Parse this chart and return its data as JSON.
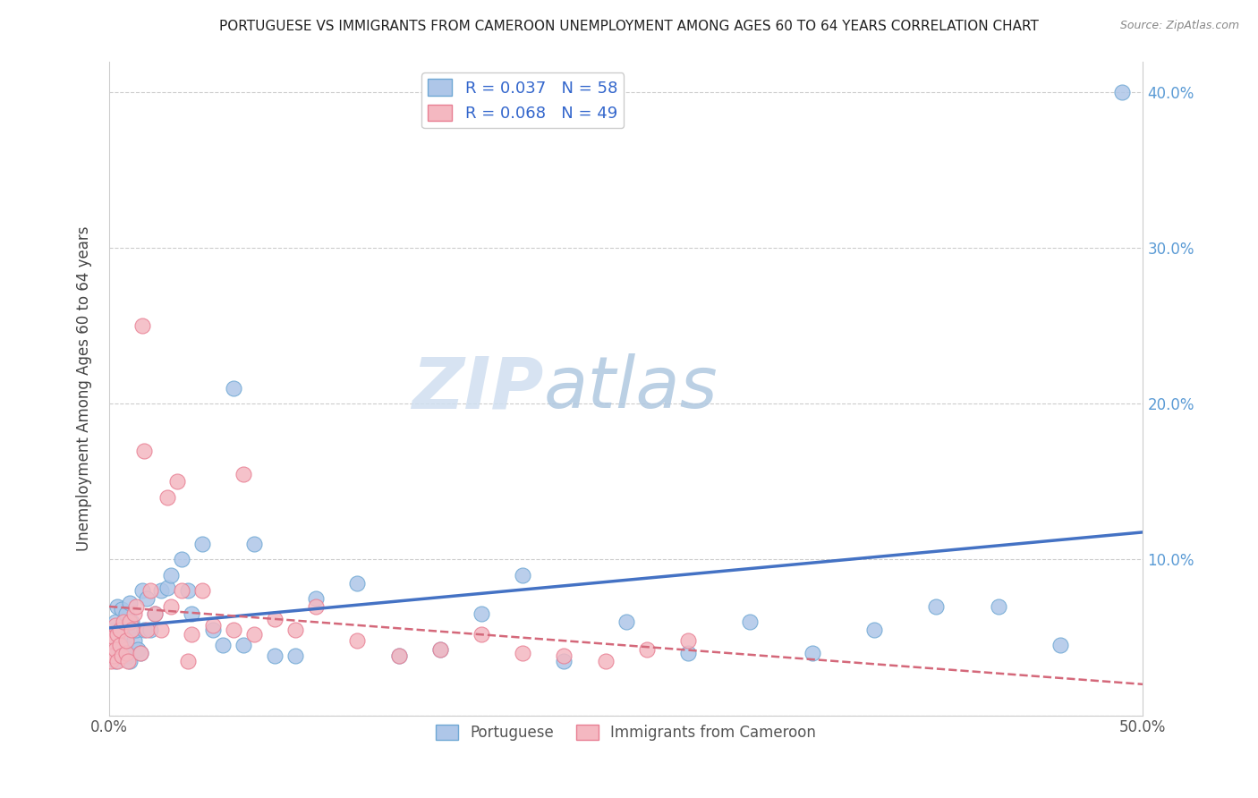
{
  "title": "PORTUGUESE VS IMMIGRANTS FROM CAMEROON UNEMPLOYMENT AMONG AGES 60 TO 64 YEARS CORRELATION CHART",
  "source": "Source: ZipAtlas.com",
  "ylabel": "Unemployment Among Ages 60 to 64 years",
  "xlabel": "",
  "xlim": [
    0.0,
    0.5
  ],
  "ylim": [
    0.0,
    0.42
  ],
  "xticks": [
    0.0,
    0.1,
    0.2,
    0.3,
    0.4,
    0.5
  ],
  "yticks": [
    0.0,
    0.1,
    0.2,
    0.3,
    0.4
  ],
  "xtick_labels": [
    "0.0%",
    "",
    "",
    "",
    "",
    "50.0%"
  ],
  "ytick_labels_right": [
    "",
    "10.0%",
    "20.0%",
    "30.0%",
    "40.0%"
  ],
  "portuguese_color": "#aec6e8",
  "cameroon_color": "#f4b8c1",
  "portuguese_edge": "#6fa8d4",
  "cameroon_edge": "#e87f93",
  "trend_portuguese_color": "#4472C4",
  "trend_cameroon_color": "#d4687a",
  "R_portuguese": 0.037,
  "N_portuguese": 58,
  "R_cameroon": 0.068,
  "N_cameroon": 49,
  "legend_labels": [
    "Portuguese",
    "Immigrants from Cameroon"
  ],
  "watermark_zip": "ZIP",
  "watermark_atlas": "atlas",
  "portuguese_x": [
    0.001,
    0.002,
    0.003,
    0.003,
    0.004,
    0.004,
    0.005,
    0.005,
    0.006,
    0.006,
    0.007,
    0.007,
    0.008,
    0.008,
    0.009,
    0.009,
    0.01,
    0.01,
    0.011,
    0.012,
    0.013,
    0.014,
    0.015,
    0.016,
    0.017,
    0.018,
    0.02,
    0.022,
    0.025,
    0.028,
    0.03,
    0.035,
    0.038,
    0.04,
    0.045,
    0.05,
    0.055,
    0.06,
    0.065,
    0.07,
    0.08,
    0.09,
    0.1,
    0.12,
    0.14,
    0.16,
    0.18,
    0.2,
    0.22,
    0.25,
    0.28,
    0.31,
    0.34,
    0.37,
    0.4,
    0.43,
    0.46,
    0.49
  ],
  "portuguese_y": [
    0.055,
    0.042,
    0.035,
    0.06,
    0.048,
    0.07,
    0.038,
    0.055,
    0.05,
    0.068,
    0.045,
    0.058,
    0.042,
    0.065,
    0.038,
    0.052,
    0.035,
    0.072,
    0.06,
    0.048,
    0.055,
    0.042,
    0.04,
    0.08,
    0.055,
    0.075,
    0.055,
    0.065,
    0.08,
    0.082,
    0.09,
    0.1,
    0.08,
    0.065,
    0.11,
    0.055,
    0.045,
    0.21,
    0.045,
    0.11,
    0.038,
    0.038,
    0.075,
    0.085,
    0.038,
    0.042,
    0.065,
    0.09,
    0.035,
    0.06,
    0.04,
    0.06,
    0.04,
    0.055,
    0.07,
    0.07,
    0.045,
    0.4
  ],
  "cameroon_x": [
    0.001,
    0.001,
    0.002,
    0.002,
    0.003,
    0.003,
    0.004,
    0.004,
    0.005,
    0.005,
    0.006,
    0.007,
    0.008,
    0.008,
    0.009,
    0.01,
    0.011,
    0.012,
    0.013,
    0.015,
    0.016,
    0.017,
    0.018,
    0.02,
    0.022,
    0.025,
    0.028,
    0.03,
    0.033,
    0.035,
    0.038,
    0.04,
    0.045,
    0.05,
    0.06,
    0.065,
    0.07,
    0.08,
    0.09,
    0.1,
    0.12,
    0.14,
    0.16,
    0.18,
    0.2,
    0.22,
    0.24,
    0.26,
    0.28
  ],
  "cameroon_y": [
    0.048,
    0.035,
    0.05,
    0.038,
    0.042,
    0.058,
    0.035,
    0.052,
    0.045,
    0.055,
    0.038,
    0.06,
    0.04,
    0.048,
    0.035,
    0.06,
    0.055,
    0.065,
    0.07,
    0.04,
    0.25,
    0.17,
    0.055,
    0.08,
    0.065,
    0.055,
    0.14,
    0.07,
    0.15,
    0.08,
    0.035,
    0.052,
    0.08,
    0.058,
    0.055,
    0.155,
    0.052,
    0.062,
    0.055,
    0.07,
    0.048,
    0.038,
    0.042,
    0.052,
    0.04,
    0.038,
    0.035,
    0.042,
    0.048
  ]
}
